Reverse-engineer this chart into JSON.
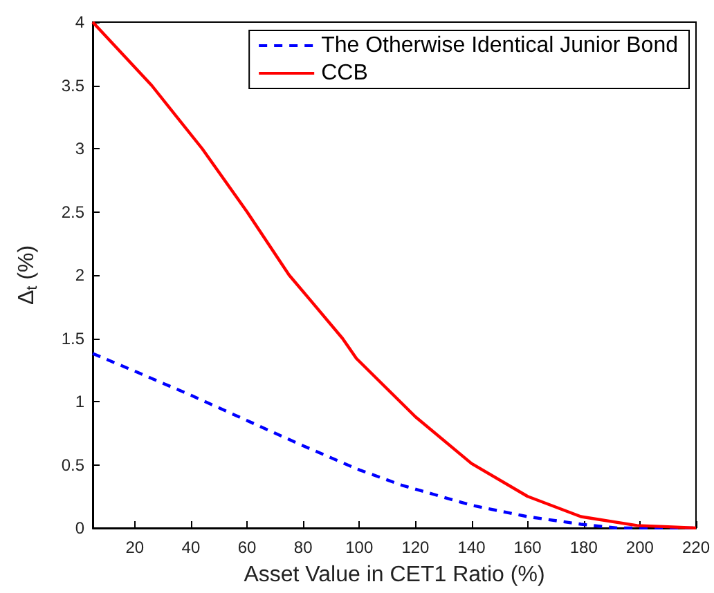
{
  "chart_data": {
    "type": "line",
    "xlabel": "Asset Value in CET1 Ratio (%)",
    "ylabel": "Δ$_{t}$ (%)",
    "xlim": [
      5,
      220
    ],
    "xticks": [
      20,
      40,
      60,
      80,
      100,
      120,
      140,
      160,
      180,
      200,
      220
    ],
    "ylim": [
      0,
      4
    ],
    "yticks": [
      0,
      0.5,
      1,
      1.5,
      2,
      2.5,
      3,
      3.5,
      4
    ],
    "grid": false,
    "legend": "top right",
    "marker": "none",
    "series": [
      {
        "name": "The Otherwise Identical Junior Bond",
        "color": "#0000ff",
        "line_style": "dashed",
        "x": [
          5,
          20,
          40,
          60,
          80,
          100,
          115,
          140,
          160,
          179,
          192,
          205,
          220
        ],
        "values": [
          1.38,
          1.24,
          1.05,
          0.85,
          0.65,
          0.46,
          0.34,
          0.18,
          0.09,
          0.03,
          0.0,
          0.0,
          0.0
        ]
      },
      {
        "name": "CCB",
        "color": "#ff0000",
        "line_style": "solid",
        "x": [
          5,
          26,
          44,
          60,
          75,
          83,
          94,
          99,
          120,
          140,
          160,
          179,
          199,
          210,
          220
        ],
        "values": [
          4,
          3.5,
          3.0,
          2.5,
          2.0,
          1.79,
          1.5,
          1.34,
          0.88,
          0.51,
          0.25,
          0.09,
          0.02,
          0.01,
          0
        ]
      }
    ]
  }
}
